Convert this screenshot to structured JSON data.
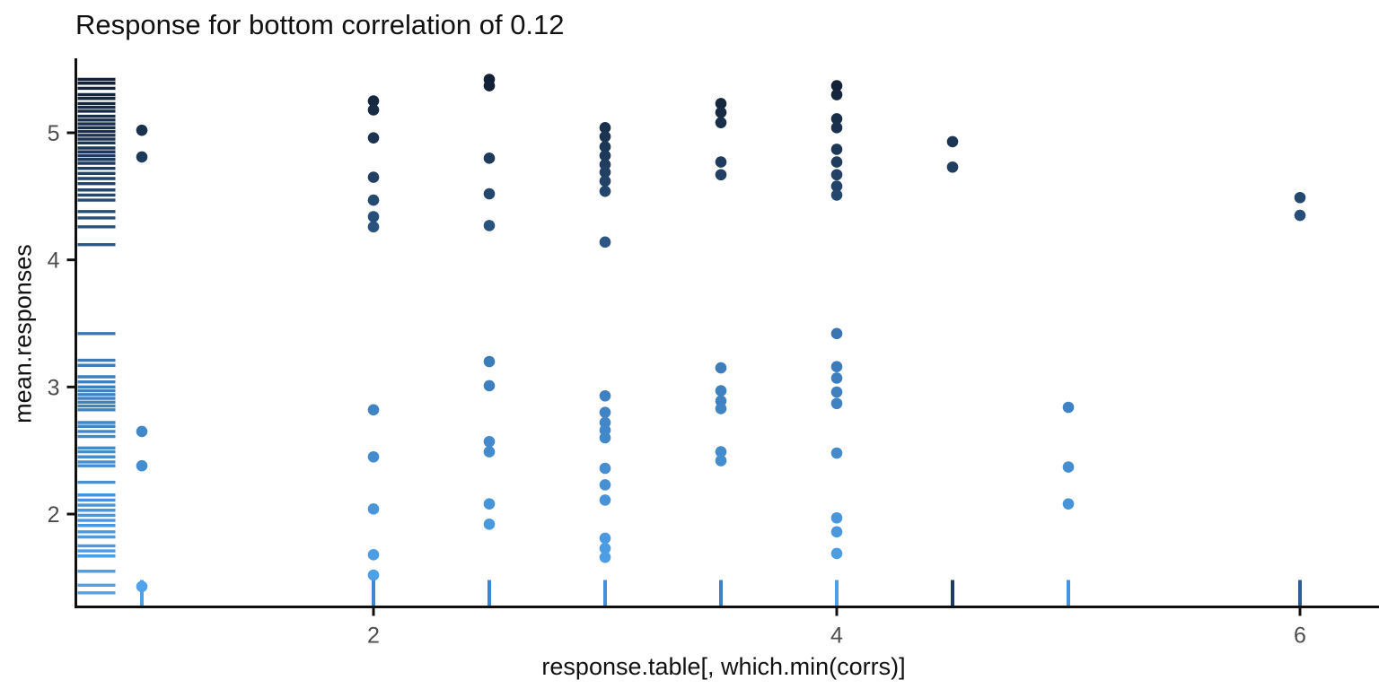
{
  "title": "Response for bottom correlation of 0.12",
  "chart_data": {
    "type": "scatter",
    "title": "Response for bottom correlation of 0.12",
    "xlabel": "response.table[, which.min(corrs)]",
    "ylabel": "mean.responses",
    "xlim": [
      0.71,
      6.31
    ],
    "ylim": [
      1.27,
      5.59
    ],
    "x_ticks": [
      2,
      4,
      6
    ],
    "y_ticks": [
      2,
      3,
      4,
      5
    ],
    "grid": false,
    "legend_position": "none",
    "point_radius": 6.3,
    "color_scale": {
      "maps_to": "y value (mean.responses)",
      "stops": [
        [
          1.4,
          "#4FA3EC"
        ],
        [
          3.4,
          "#3A77B4"
        ],
        [
          5.45,
          "#121F33"
        ]
      ]
    },
    "axis_line_color": "#101010",
    "tick_label_color": "#4D4D4D",
    "series": [
      {
        "name": "mean.responses vs response.table",
        "points": [
          [
            1,
            5.02
          ],
          [
            1,
            4.81
          ],
          [
            1,
            2.65
          ],
          [
            1,
            2.38
          ],
          [
            1,
            1.43
          ],
          [
            2,
            5.25
          ],
          [
            2,
            5.18
          ],
          [
            2,
            4.96
          ],
          [
            2,
            4.65
          ],
          [
            2,
            4.47
          ],
          [
            2,
            4.34
          ],
          [
            2,
            4.26
          ],
          [
            2,
            2.82
          ],
          [
            2,
            2.45
          ],
          [
            2,
            2.04
          ],
          [
            2,
            1.68
          ],
          [
            2,
            1.52
          ],
          [
            2.5,
            5.42
          ],
          [
            2.5,
            5.37
          ],
          [
            2.5,
            4.8
          ],
          [
            2.5,
            4.52
          ],
          [
            2.5,
            4.27
          ],
          [
            2.5,
            3.2
          ],
          [
            2.5,
            3.01
          ],
          [
            2.5,
            2.57
          ],
          [
            2.5,
            2.49
          ],
          [
            2.5,
            2.08
          ],
          [
            2.5,
            1.92
          ],
          [
            3,
            5.04
          ],
          [
            3,
            4.97
          ],
          [
            3,
            4.89
          ],
          [
            3,
            4.82
          ],
          [
            3,
            4.75
          ],
          [
            3,
            4.69
          ],
          [
            3,
            4.62
          ],
          [
            3,
            4.54
          ],
          [
            3,
            4.14
          ],
          [
            3,
            2.93
          ],
          [
            3,
            2.8
          ],
          [
            3,
            2.72
          ],
          [
            3,
            2.66
          ],
          [
            3,
            2.6
          ],
          [
            3,
            2.36
          ],
          [
            3,
            2.23
          ],
          [
            3,
            2.11
          ],
          [
            3,
            1.81
          ],
          [
            3,
            1.73
          ],
          [
            3,
            1.66
          ],
          [
            3.5,
            5.23
          ],
          [
            3.5,
            5.16
          ],
          [
            3.5,
            5.08
          ],
          [
            3.5,
            4.77
          ],
          [
            3.5,
            4.67
          ],
          [
            3.5,
            3.15
          ],
          [
            3.5,
            2.97
          ],
          [
            3.5,
            2.89
          ],
          [
            3.5,
            2.83
          ],
          [
            3.5,
            2.49
          ],
          [
            3.5,
            2.42
          ],
          [
            4,
            5.37
          ],
          [
            4,
            5.3
          ],
          [
            4,
            5.11
          ],
          [
            4,
            5.04
          ],
          [
            4,
            4.87
          ],
          [
            4,
            4.77
          ],
          [
            4,
            4.67
          ],
          [
            4,
            4.58
          ],
          [
            4,
            4.51
          ],
          [
            4,
            3.42
          ],
          [
            4,
            3.16
          ],
          [
            4,
            3.07
          ],
          [
            4,
            2.96
          ],
          [
            4,
            2.87
          ],
          [
            4,
            2.48
          ],
          [
            4,
            1.97
          ],
          [
            4,
            1.86
          ],
          [
            4,
            1.69
          ],
          [
            4.5,
            4.93
          ],
          [
            4.5,
            4.73
          ],
          [
            5,
            2.84
          ],
          [
            5,
            2.37
          ],
          [
            5,
            2.08
          ],
          [
            6,
            4.49
          ],
          [
            6,
            4.35
          ]
        ]
      }
    ],
    "rug_left_y": [
      5.42,
      5.39,
      5.35,
      5.3,
      5.27,
      5.23,
      5.2,
      5.17,
      5.13,
      5.1,
      5.07,
      5.04,
      5.01,
      4.98,
      4.95,
      4.92,
      4.88,
      4.85,
      4.82,
      4.79,
      4.76,
      4.72,
      4.68,
      4.64,
      4.6,
      4.55,
      4.51,
      4.47,
      4.38,
      4.33,
      4.26,
      4.12,
      3.42,
      3.21,
      3.17,
      3.08,
      3.04,
      3.0,
      2.97,
      2.94,
      2.91,
      2.88,
      2.85,
      2.82,
      2.72,
      2.69,
      2.65,
      2.61,
      2.52,
      2.49,
      2.45,
      2.41,
      2.38,
      2.25,
      2.15,
      2.11,
      2.07,
      2.03,
      1.99,
      1.95,
      1.91,
      1.86,
      1.82,
      1.75,
      1.71,
      1.67,
      1.55,
      1.44,
      1.38
    ],
    "rug_bottom": [
      {
        "x": 1,
        "color": "#4FA0E6"
      },
      {
        "x": 2,
        "color": "#3E86CF"
      },
      {
        "x": 2.5,
        "color": "#3E86CF"
      },
      {
        "x": 3,
        "color": "#4490DB"
      },
      {
        "x": 3.5,
        "color": "#3D81C8"
      },
      {
        "x": 4,
        "color": "#4D9EE8"
      },
      {
        "x": 4.5,
        "color": "#203C60"
      },
      {
        "x": 5,
        "color": "#4694DD"
      },
      {
        "x": 6,
        "color": "#2E5E94"
      }
    ]
  }
}
